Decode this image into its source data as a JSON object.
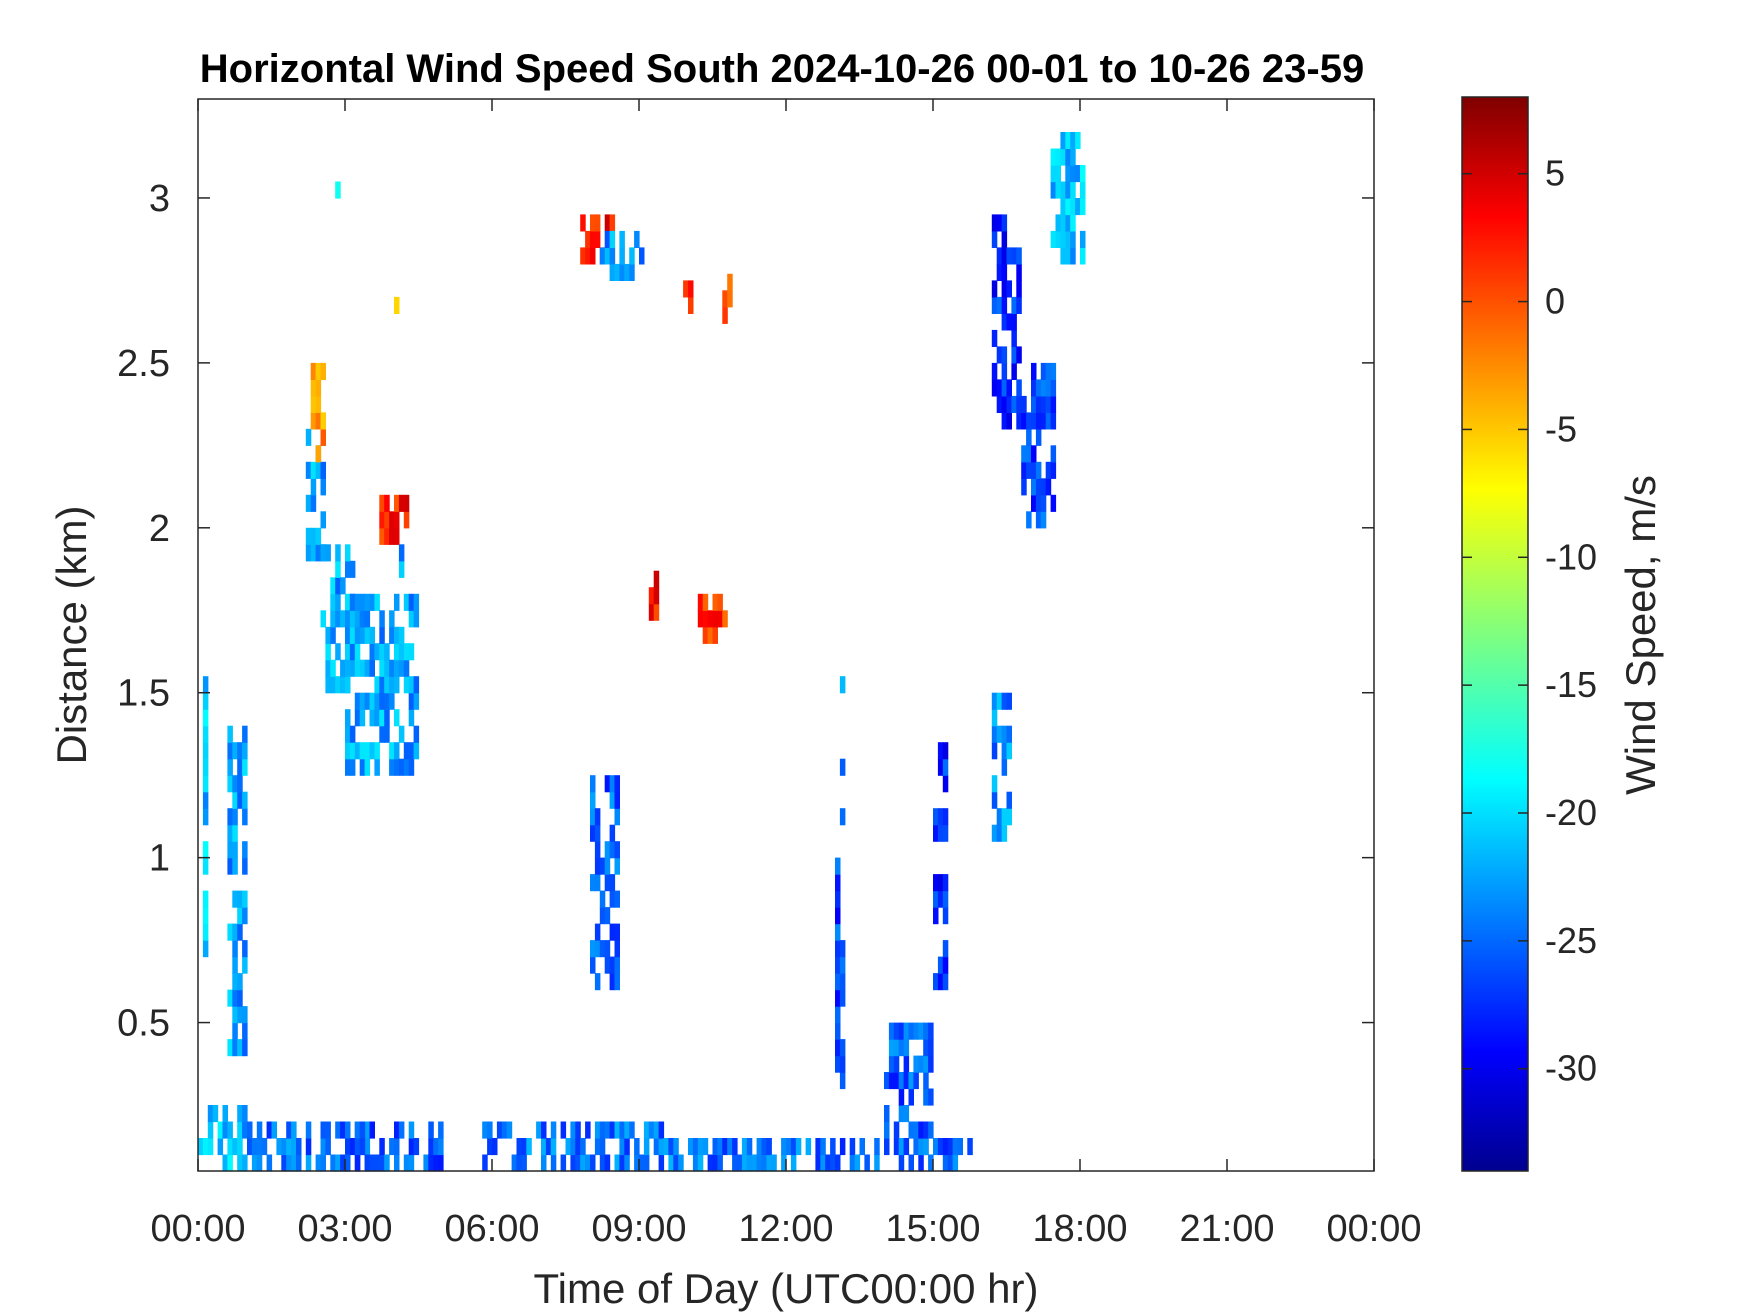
{
  "chart_data": {
    "type": "heatmap",
    "title": "Horizontal Wind Speed South 2024-10-26 00-01 to 10-26 23-59",
    "xlabel": "Time of Day (UTC00:00 hr)",
    "ylabel": "Distance (km)",
    "x_unit": "hours",
    "xlim": [
      0,
      24
    ],
    "ylim": [
      0.05,
      3.3
    ],
    "x_ticks": [
      0,
      3,
      6,
      9,
      12,
      15,
      18,
      21,
      24
    ],
    "x_tick_labels": [
      "00:00",
      "03:00",
      "06:00",
      "09:00",
      "12:00",
      "15:00",
      "18:00",
      "21:00",
      "00:00"
    ],
    "y_ticks": [
      0.5,
      1,
      1.5,
      2,
      2.5,
      3
    ],
    "y_tick_labels": [
      "0.5",
      "1",
      "1.5",
      "2",
      "2.5",
      "3"
    ],
    "grid": false,
    "colorbar": {
      "label": "Wind Speed, m/s",
      "colormap": "jet",
      "clim": [
        -34,
        8
      ],
      "ticks": [
        -30,
        -25,
        -20,
        -15,
        -10,
        -5,
        0,
        5
      ],
      "tick_labels": [
        "-30",
        "-25",
        "-20",
        "-15",
        "-10",
        "-5",
        "0",
        "5"
      ]
    },
    "regions": [
      {
        "x": [
          0.0,
          1.0
        ],
        "y": [
          0.05,
          0.25
        ],
        "v": -21
      },
      {
        "x": [
          1.0,
          3.5
        ],
        "y": [
          0.05,
          0.2
        ],
        "v": -24
      },
      {
        "x": [
          3.0,
          5.0
        ],
        "y": [
          0.05,
          0.18
        ],
        "v": -25
      },
      {
        "x": [
          5.8,
          9.5
        ],
        "y": [
          0.05,
          0.2
        ],
        "v": -24
      },
      {
        "x": [
          9.5,
          12.5
        ],
        "y": [
          0.05,
          0.15
        ],
        "v": -24
      },
      {
        "x": [
          12.5,
          15.8
        ],
        "y": [
          0.05,
          0.12
        ],
        "v": -25
      },
      {
        "x": [
          0.1,
          0.2
        ],
        "y": [
          0.7,
          1.55
        ],
        "v": -21
      },
      {
        "x": [
          0.6,
          1.0
        ],
        "y": [
          0.4,
          1.4
        ],
        "v": -22
      },
      {
        "x": [
          2.2,
          2.6
        ],
        "y": [
          1.9,
          2.3
        ],
        "v": -22
      },
      {
        "x": [
          2.3,
          2.6
        ],
        "y": [
          2.2,
          2.5
        ],
        "v": -3
      },
      {
        "x": [
          2.5,
          3.2
        ],
        "y": [
          1.5,
          1.95
        ],
        "v": -22
      },
      {
        "x": [
          3.0,
          4.5
        ],
        "y": [
          1.25,
          1.8
        ],
        "v": -22
      },
      {
        "x": [
          3.7,
          4.3
        ],
        "y": [
          1.95,
          2.1
        ],
        "v": 2
      },
      {
        "x": [
          4.0,
          4.5
        ],
        "y": [
          1.85,
          1.95
        ],
        "v": -23
      },
      {
        "x": [
          7.8,
          8.5
        ],
        "y": [
          2.8,
          2.95
        ],
        "v": 2
      },
      {
        "x": [
          8.2,
          9.2
        ],
        "y": [
          2.75,
          2.9
        ],
        "v": -23
      },
      {
        "x": [
          8.0,
          8.6
        ],
        "y": [
          0.6,
          1.25
        ],
        "v": -25
      },
      {
        "x": [
          9.2,
          9.4
        ],
        "y": [
          1.72,
          1.85
        ],
        "v": 2
      },
      {
        "x": [
          10.2,
          10.8
        ],
        "y": [
          1.65,
          1.8
        ],
        "v": 1
      },
      {
        "x": [
          9.9,
          10.1
        ],
        "y": [
          2.65,
          2.75
        ],
        "v": 0
      },
      {
        "x": [
          10.7,
          10.9
        ],
        "y": [
          2.62,
          2.73
        ],
        "v": 0
      },
      {
        "x": [
          13.1,
          13.2
        ],
        "y": [
          1.1,
          1.6
        ],
        "v": -23
      },
      {
        "x": [
          15.0,
          15.3
        ],
        "y": [
          0.6,
          1.35
        ],
        "v": -27
      },
      {
        "x": [
          16.2,
          16.6
        ],
        "y": [
          1.05,
          1.5
        ],
        "v": -23
      },
      {
        "x": [
          16.2,
          16.8
        ],
        "y": [
          2.3,
          2.95
        ],
        "v": -27
      },
      {
        "x": [
          16.8,
          17.5
        ],
        "y": [
          2.0,
          2.5
        ],
        "v": -26
      },
      {
        "x": [
          17.4,
          18.1
        ],
        "y": [
          2.8,
          3.2
        ],
        "v": -21
      },
      {
        "x": [
          2.7,
          3.0
        ],
        "y": [
          3.0,
          3.05
        ],
        "v": -19
      },
      {
        "x": [
          4.0,
          4.1
        ],
        "y": [
          2.6,
          2.72
        ],
        "v": -9
      },
      {
        "x": [
          13.0,
          13.2
        ],
        "y": [
          0.3,
          1.0
        ],
        "v": -26
      },
      {
        "x": [
          14.0,
          15.0
        ],
        "y": [
          0.1,
          0.5
        ],
        "v": -25
      }
    ]
  }
}
